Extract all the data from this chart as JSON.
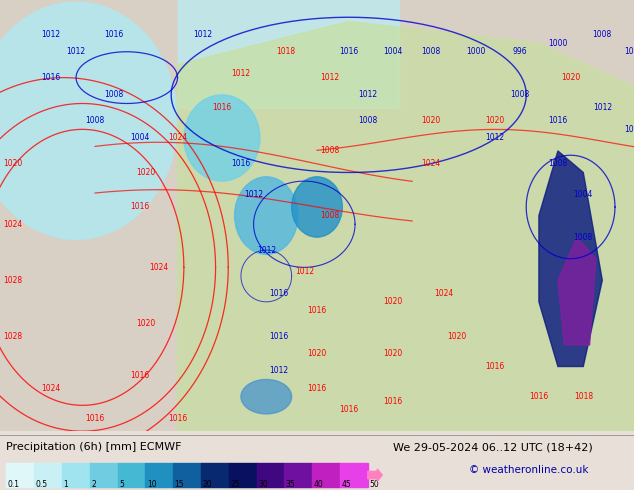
{
  "title_left": "Precipitation (6h) [mm] ECMWF",
  "title_right": "We 29-05-2024 06..12 UTC (18+42)",
  "copyright": "© weatheronline.co.uk",
  "colorbar_levels": [
    0.1,
    0.5,
    1,
    2,
    5,
    10,
    15,
    20,
    25,
    30,
    35,
    40,
    45,
    50
  ],
  "colorbar_colors": [
    "#e0f7fa",
    "#b2ebf2",
    "#80deea",
    "#4dd0e1",
    "#26c6da",
    "#00bcd4",
    "#0097a7",
    "#006064",
    "#1a237e",
    "#283593",
    "#7b1fa2",
    "#ab47bc",
    "#e040fb",
    "#f8bbd0"
  ],
  "background_color": "#e8e0d8",
  "map_background": "#d4c8b8",
  "fig_width": 6.34,
  "fig_height": 4.9,
  "dpi": 100
}
